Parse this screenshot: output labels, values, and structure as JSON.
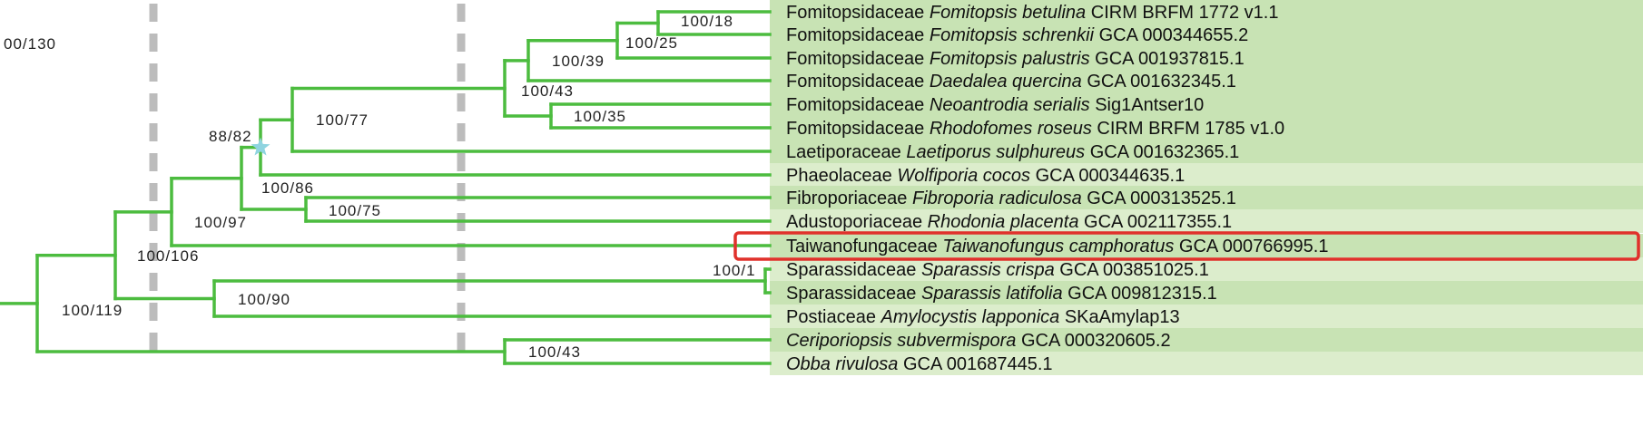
{
  "tree": {
    "colors": {
      "branch": "#4cbc3f",
      "row_band_dark": "#c8e3b4",
      "row_band_light": "#dcedcc",
      "guide_line": "#bcbcbc",
      "highlight_box": "#e0312b",
      "node_star": "#8fd4e0"
    },
    "support_values": [
      "00/130",
      "100/18",
      "100/25",
      "100/39",
      "100/43",
      "100/35",
      "100/77",
      "88/82",
      "100/86",
      "100/97",
      "100/75",
      "100/106",
      "100/1",
      "100/90",
      "100/119",
      "100/43"
    ],
    "highlighted_leaf": 10,
    "star_node_support": "88/82",
    "leaves": [
      {
        "family": "Fomitopsidaceae",
        "species": "Fomitopsis betulina",
        "accession": "CIRM BRFM 1772 v1.1"
      },
      {
        "family": "Fomitopsidaceae",
        "species": "Fomitopsis schrenkii",
        "accession": "GCA 000344655.2"
      },
      {
        "family": "Fomitopsidaceae",
        "species": "Fomitopsis palustris",
        "accession": "GCA 001937815.1"
      },
      {
        "family": "Fomitopsidaceae",
        "species": "Daedalea quercina",
        "accession": "GCA 001632345.1"
      },
      {
        "family": "Fomitopsidaceae",
        "species": "Neoantrodia serialis",
        "accession": "Sig1Antser10"
      },
      {
        "family": "Fomitopsidaceae",
        "species": "Rhodofomes roseus",
        "accession": "CIRM BRFM 1785 v1.0"
      },
      {
        "family": "Laetiporaceae",
        "species": "Laetiporus sulphureus",
        "accession": "GCA 001632365.1"
      },
      {
        "family": "Phaeolaceae",
        "species": "Wolfiporia cocos",
        "accession": "GCA 000344635.1"
      },
      {
        "family": "Fibroporiaceae",
        "species": "Fibroporia radiculosa",
        "accession": "GCA 000313525.1"
      },
      {
        "family": "Adustoporiaceae ",
        "species": "Rhodonia placenta",
        "accession": "GCA 002117355.1"
      },
      {
        "family": "Taiwanofungaceae ",
        "species": "Taiwanofungus camphoratus",
        "accession": "GCA 000766995.1"
      },
      {
        "family": "Sparassidaceae",
        "species": "Sparassis crispa",
        "accession": "GCA 003851025.1"
      },
      {
        "family": "Sparassidaceae",
        "species": "Sparassis latifolia",
        "accession": "GCA 009812315.1"
      },
      {
        "family": "Postiaceae",
        "species": "Amylocystis lapponica",
        "accession": "SKaAmylap13"
      },
      {
        "family": "",
        "species": "Ceriporiopsis subvermispora",
        "accession": "GCA 000320605.2"
      },
      {
        "family": "",
        "species": "Obba rivulosa",
        "accession": "GCA 001687445.1"
      }
    ]
  }
}
